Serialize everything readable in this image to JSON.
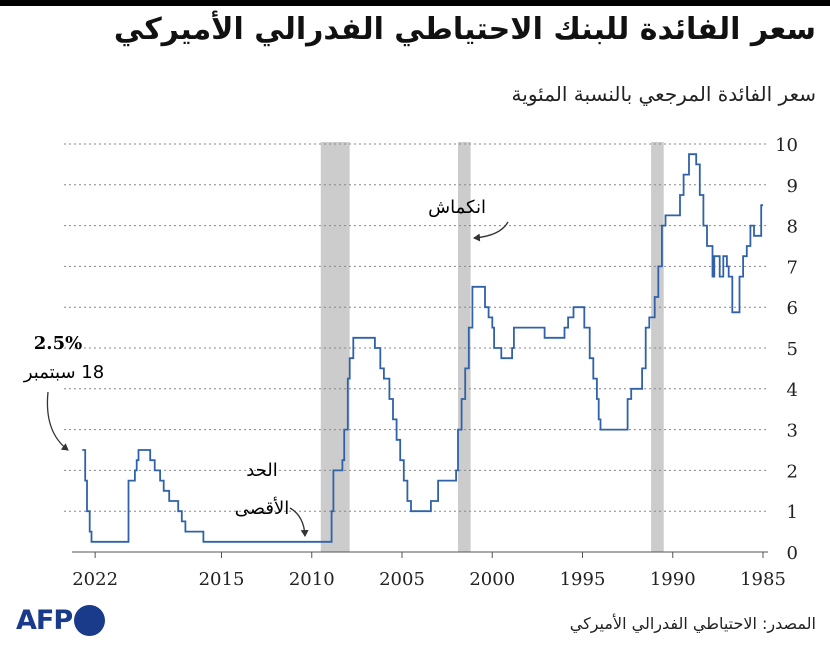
{
  "header": {
    "title": "سعر الفائدة للبنك الاحتياطي الفدرالي الأميركي",
    "subtitle": "سعر الفائدة المرجعي بالنسبة المئوية"
  },
  "footer": {
    "source": "المصدر: الاحتياطي الفدرالي الأميركي",
    "logo": "AFP"
  },
  "chart_data": {
    "type": "line",
    "step": true,
    "x_axis": {
      "reversed": true,
      "range": [
        1985,
        2022.75
      ],
      "tick_labels": [
        "2022",
        "2015",
        "2010",
        "2005",
        "2000",
        "1995",
        "1990",
        "1985"
      ]
    },
    "y_axis": {
      "position": "right",
      "range": [
        0,
        10
      ],
      "tick_labels": [
        "0",
        "1",
        "2",
        "3",
        "4",
        "5",
        "6",
        "7",
        "8",
        "9",
        "10"
      ]
    },
    "grid": "horizontal-dotted",
    "line_color": "#2f62a8",
    "recession_color": "#cccccc",
    "recessions": [
      [
        1990.5,
        1991.2
      ],
      [
        2001.2,
        2001.9
      ],
      [
        2007.9,
        2009.5
      ]
    ],
    "annotations": {
      "recession_label": "انكماش",
      "minimum_label_line1": "الحد",
      "minimum_label_line2": "الأقصى",
      "latest_value": "2.5%",
      "latest_date": "18 سبتمبر"
    },
    "series": [
      {
        "points": [
          [
            1985.0,
            8.5
          ],
          [
            1985.1,
            7.75
          ],
          [
            1985.4,
            7.75
          ],
          [
            1985.5,
            8.0
          ],
          [
            1985.7,
            7.5
          ],
          [
            1985.9,
            7.25
          ],
          [
            1986.1,
            6.75
          ],
          [
            1986.3,
            5.875
          ],
          [
            1986.6,
            5.875
          ],
          [
            1986.7,
            6.75
          ],
          [
            1986.9,
            7.0
          ],
          [
            1987.0,
            7.25
          ],
          [
            1987.2,
            6.75
          ],
          [
            1987.4,
            7.25
          ],
          [
            1987.7,
            6.75
          ],
          [
            1987.8,
            7.5
          ],
          [
            1988.1,
            8.0
          ],
          [
            1988.3,
            8.75
          ],
          [
            1988.5,
            9.5
          ],
          [
            1988.7,
            9.75
          ],
          [
            1989.0,
            9.75
          ],
          [
            1989.1,
            9.25
          ],
          [
            1989.4,
            8.75
          ],
          [
            1989.6,
            8.25
          ],
          [
            1990.3,
            8.25
          ],
          [
            1990.4,
            8.0
          ],
          [
            1990.6,
            7.0
          ],
          [
            1990.8,
            6.25
          ],
          [
            1991.0,
            5.75
          ],
          [
            1991.3,
            5.5
          ],
          [
            1991.5,
            4.5
          ],
          [
            1991.7,
            4.0
          ],
          [
            1992.3,
            3.75
          ],
          [
            1992.5,
            3.0
          ],
          [
            1993.9,
            3.0
          ],
          [
            1994.0,
            3.25
          ],
          [
            1994.1,
            3.75
          ],
          [
            1994.2,
            4.25
          ],
          [
            1994.4,
            4.75
          ],
          [
            1994.6,
            5.5
          ],
          [
            1994.9,
            6.0
          ],
          [
            1995.4,
            6.0
          ],
          [
            1995.5,
            5.75
          ],
          [
            1995.8,
            5.5
          ],
          [
            1996.0,
            5.25
          ],
          [
            1997.0,
            5.25
          ],
          [
            1997.1,
            5.5
          ],
          [
            1998.7,
            5.5
          ],
          [
            1998.8,
            5.0
          ],
          [
            1998.9,
            4.75
          ],
          [
            1999.4,
            4.75
          ],
          [
            1999.5,
            5.0
          ],
          [
            1999.9,
            5.5
          ],
          [
            2000.0,
            5.75
          ],
          [
            2000.2,
            6.0
          ],
          [
            2000.4,
            6.5
          ],
          [
            2001.0,
            6.5
          ],
          [
            2001.1,
            5.5
          ],
          [
            2001.3,
            4.5
          ],
          [
            2001.5,
            3.75
          ],
          [
            2001.7,
            3.0
          ],
          [
            2001.9,
            2.0
          ],
          [
            2002.0,
            1.75
          ],
          [
            2003.0,
            1.25
          ],
          [
            2003.4,
            1.0
          ],
          [
            2004.4,
            1.0
          ],
          [
            2004.5,
            1.25
          ],
          [
            2004.7,
            1.75
          ],
          [
            2004.9,
            2.25
          ],
          [
            2005.1,
            2.75
          ],
          [
            2005.3,
            3.25
          ],
          [
            2005.5,
            3.75
          ],
          [
            2005.7,
            4.25
          ],
          [
            2006.0,
            4.5
          ],
          [
            2006.2,
            5.0
          ],
          [
            2006.5,
            5.25
          ],
          [
            2007.6,
            5.25
          ],
          [
            2007.7,
            4.75
          ],
          [
            2007.9,
            4.25
          ],
          [
            2008.0,
            3.0
          ],
          [
            2008.2,
            2.25
          ],
          [
            2008.3,
            2.0
          ],
          [
            2008.7,
            2.0
          ],
          [
            2008.8,
            1.0
          ],
          [
            2008.9,
            0.25
          ],
          [
            2015.9,
            0.25
          ],
          [
            2016.0,
            0.5
          ],
          [
            2016.9,
            0.5
          ],
          [
            2017.0,
            0.75
          ],
          [
            2017.2,
            1.0
          ],
          [
            2017.4,
            1.25
          ],
          [
            2017.9,
            1.5
          ],
          [
            2018.2,
            1.75
          ],
          [
            2018.4,
            2.0
          ],
          [
            2018.7,
            2.25
          ],
          [
            2018.95,
            2.5
          ],
          [
            2019.5,
            2.5
          ],
          [
            2019.6,
            2.25
          ],
          [
            2019.7,
            2.0
          ],
          [
            2019.8,
            1.75
          ],
          [
            2020.15,
            0.25
          ],
          [
            2022.15,
            0.25
          ],
          [
            2022.2,
            0.5
          ],
          [
            2022.3,
            1.0
          ],
          [
            2022.45,
            1.75
          ],
          [
            2022.55,
            2.5
          ],
          [
            2022.71,
            2.5
          ]
        ]
      }
    ]
  }
}
